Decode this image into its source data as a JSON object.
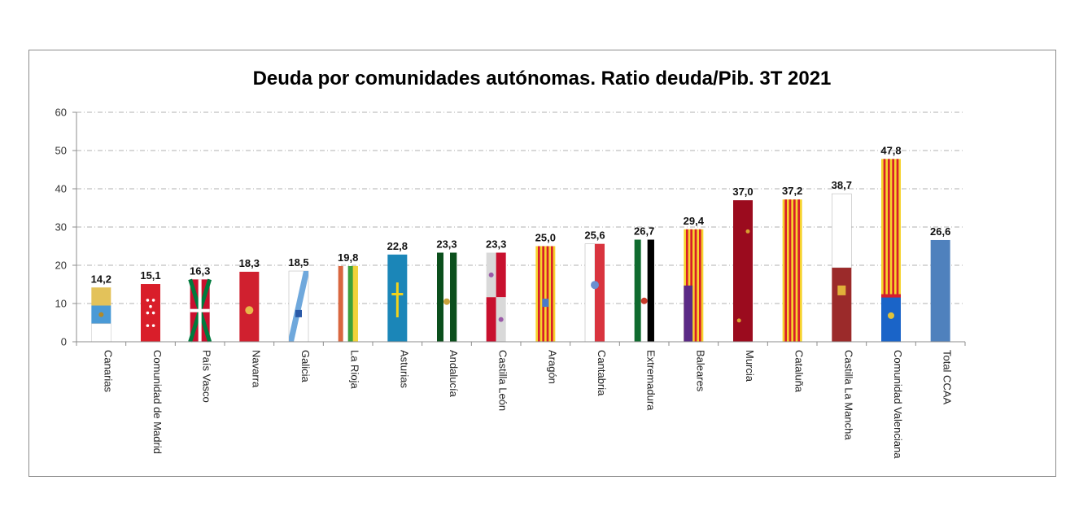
{
  "chart_data": {
    "type": "bar",
    "title": "Deuda por comunidades autónomas. Ratio deuda/Pib. 3T 2021",
    "xlabel": "",
    "ylabel": "",
    "ylim": [
      0,
      60
    ],
    "yticks": [
      0,
      10,
      20,
      30,
      40,
      50,
      60
    ],
    "grid": true,
    "categories": [
      "Canarias",
      "Comunidad de Madrid",
      "País Vasco",
      "Navarra",
      "Galicia",
      "La Rioja",
      "Asturias",
      "Andalucía",
      "Castilla León",
      "Aragón",
      "Cantabria",
      "Extremadura",
      "Baleares",
      "Murcia",
      "Cataluña",
      "Castilla La Mancha",
      "Comunidad Valenciana",
      "Total CCAA"
    ],
    "values": [
      14.2,
      15.1,
      16.3,
      18.3,
      18.5,
      19.8,
      22.8,
      23.3,
      23.3,
      25.0,
      25.6,
      26.7,
      29.4,
      37.0,
      37.2,
      38.7,
      47.8,
      26.6
    ],
    "value_labels": [
      "14,2",
      "15,1",
      "16,3",
      "18,3",
      "18,5",
      "19,8",
      "22,8",
      "23,3",
      "23,3",
      "25,0",
      "25,6",
      "26,7",
      "29,4",
      "37,0",
      "37,2",
      "38,7",
      "47,8",
      "26,6"
    ],
    "bar_styles": [
      "canarias",
      "madrid",
      "paisvasco",
      "navarra",
      "galicia",
      "larioja",
      "asturias",
      "andalucia",
      "castillaleon",
      "aragon",
      "cantabria",
      "extremadura",
      "baleares",
      "murcia",
      "cataluna",
      "castillamancha",
      "valenciana",
      "total"
    ],
    "colors": {
      "gridline": "#b0b0b0",
      "axis": "#8c8c8c",
      "total_bar": "#4f81bd",
      "madrid_red": "#d91e2a",
      "navarra_red": "#d0202f",
      "galicia_blue": "#6fa8dc",
      "asturias_blue": "#1b86b8",
      "asturias_cross": "#f2d21b",
      "andalucia_green": "#0b4f1c",
      "murcia_red": "#9b0b1e",
      "catalan_yellow": "#f6d32d",
      "catalan_red": "#d81e2a",
      "canarias_yellow": "#e3c25a",
      "canarias_blue": "#4a9ad6",
      "extremadura_green": "#0f6b2f",
      "baleares_purple": "#5b2a86",
      "mancha_red": "#9b2a2a",
      "valencia_blue": "#1a64c8"
    }
  }
}
